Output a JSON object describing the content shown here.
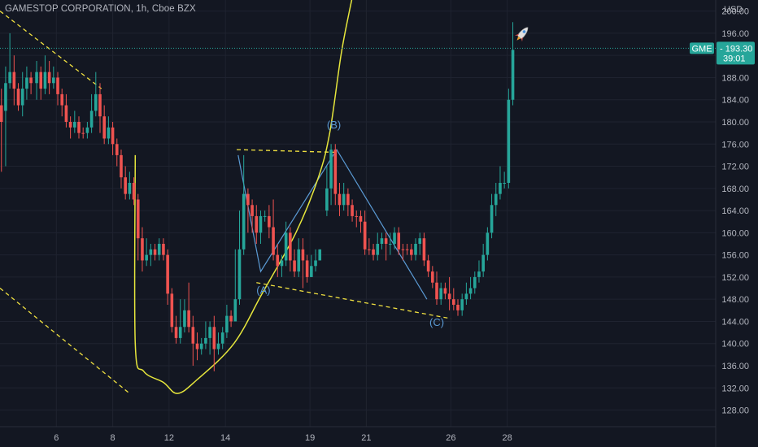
{
  "header": {
    "symbol_title": "GAMESTOP CORPORATION, 1h, Cboe BZX",
    "currency": "USD"
  },
  "colors": {
    "background": "#131722",
    "grid": "#1f2330",
    "up": "#26a69a",
    "down": "#ef5350",
    "trend_dashed": "#f0e040",
    "curve": "#e6e63c",
    "wave_lines": "#5b9bd5",
    "price_line": "#26a69a"
  },
  "price_tag": {
    "ticker": "GME",
    "price": "193.30",
    "countdown": "39:01",
    "value": 193.3
  },
  "rocket_icon": "rocket",
  "chart_data": {
    "type": "candlestick",
    "title": "GAMESTOP CORPORATION, 1h, Cboe BZX",
    "ylim": [
      125,
      202
    ],
    "xlim": [
      4.0,
      29.4
    ],
    "grid": true,
    "y_ticks": [
      "128.00",
      "132.00",
      "136.00",
      "140.00",
      "144.00",
      "148.00",
      "152.00",
      "156.00",
      "160.00",
      "164.00",
      "168.00",
      "172.00",
      "176.00",
      "180.00",
      "184.00",
      "188.00",
      "192.00",
      "196.00",
      "200.00"
    ],
    "x_ticks": [
      {
        "label": "6",
        "v": 6
      },
      {
        "label": "8",
        "v": 8
      },
      {
        "label": "12",
        "v": 10
      },
      {
        "label": "14",
        "v": 12
      },
      {
        "label": "19",
        "v": 15
      },
      {
        "label": "21",
        "v": 17
      },
      {
        "label": "26",
        "v": 20
      },
      {
        "label": "28",
        "v": 22
      }
    ],
    "candles": [
      [
        4.05,
        183,
        180,
        186,
        171,
        "d"
      ],
      [
        4.2,
        182,
        187,
        190,
        172,
        "u"
      ],
      [
        4.35,
        187,
        189,
        196,
        186,
        "u"
      ],
      [
        4.5,
        189,
        186,
        192,
        183,
        "d"
      ],
      [
        4.65,
        186,
        183,
        187,
        182,
        "d"
      ],
      [
        4.8,
        183,
        186,
        189,
        181,
        "u"
      ],
      [
        4.95,
        186,
        188,
        190,
        184,
        "u"
      ],
      [
        5.1,
        188,
        187,
        189,
        185,
        "d"
      ],
      [
        5.3,
        187,
        189,
        191,
        184,
        "u"
      ],
      [
        5.45,
        189,
        186,
        190,
        184,
        "d"
      ],
      [
        5.6,
        186,
        189,
        192,
        185,
        "u"
      ],
      [
        5.75,
        189,
        187,
        191,
        185,
        "d"
      ],
      [
        5.9,
        187,
        188,
        190,
        186,
        "u"
      ],
      [
        6.05,
        188,
        185,
        189,
        183,
        "d"
      ],
      [
        6.2,
        185,
        183,
        186,
        181,
        "d"
      ],
      [
        6.35,
        183,
        180,
        185,
        179,
        "d"
      ],
      [
        6.5,
        180,
        179,
        181,
        177,
        "d"
      ],
      [
        6.65,
        179,
        180,
        182,
        178,
        "u"
      ],
      [
        6.8,
        180,
        178,
        181,
        177,
        "d"
      ],
      [
        6.95,
        178,
        178,
        179,
        177,
        "d"
      ],
      [
        7.1,
        178,
        179,
        180,
        177,
        "u"
      ],
      [
        7.25,
        179,
        182,
        185,
        178,
        "u"
      ],
      [
        7.4,
        182,
        185,
        189,
        181,
        "u"
      ],
      [
        7.55,
        185,
        181,
        187,
        178,
        "d"
      ],
      [
        7.7,
        181,
        177,
        183,
        176,
        "d"
      ],
      [
        7.85,
        177,
        179,
        181,
        176,
        "u"
      ],
      [
        8.0,
        179,
        176,
        180,
        174,
        "d"
      ],
      [
        8.15,
        176,
        174,
        177,
        172,
        "d"
      ],
      [
        8.3,
        174,
        170,
        175,
        168,
        "d"
      ],
      [
        8.45,
        170,
        167,
        172,
        166,
        "d"
      ],
      [
        8.6,
        167,
        169,
        171,
        166,
        "u"
      ],
      [
        8.75,
        169,
        166,
        170,
        165,
        "d"
      ],
      [
        8.9,
        166,
        159,
        167,
        155,
        "d"
      ],
      [
        9.05,
        159,
        155,
        161,
        153,
        "d"
      ],
      [
        9.2,
        155,
        156,
        159,
        154,
        "u"
      ],
      [
        9.35,
        156,
        157,
        158,
        154,
        "u"
      ],
      [
        9.5,
        157,
        156,
        158,
        155,
        "d"
      ],
      [
        9.65,
        156,
        158,
        159,
        155,
        "u"
      ],
      [
        9.8,
        158,
        156,
        159,
        155,
        "d"
      ],
      [
        9.95,
        156,
        149,
        157,
        147,
        "d"
      ],
      [
        10.1,
        149,
        143,
        150,
        142,
        "d"
      ],
      [
        10.25,
        143,
        141,
        145,
        140,
        "d"
      ],
      [
        10.4,
        141,
        143,
        148,
        140,
        "u"
      ],
      [
        10.55,
        143,
        146,
        148,
        142,
        "u"
      ],
      [
        10.7,
        146,
        143,
        151,
        142,
        "d"
      ],
      [
        10.85,
        143,
        140,
        145,
        136,
        "d"
      ],
      [
        11.0,
        140,
        139,
        142,
        137,
        "d"
      ],
      [
        11.15,
        139,
        140,
        141,
        138,
        "u"
      ],
      [
        11.3,
        140,
        141,
        144,
        139,
        "u"
      ],
      [
        11.45,
        141,
        143,
        144,
        138,
        "u"
      ],
      [
        11.6,
        143,
        139,
        145,
        135,
        "d"
      ],
      [
        11.75,
        139,
        140,
        142,
        138,
        "u"
      ],
      [
        11.9,
        140,
        142,
        143,
        139,
        "u"
      ],
      [
        12.05,
        142,
        145,
        147,
        141,
        "u"
      ],
      [
        12.2,
        145,
        144,
        146,
        143,
        "d"
      ],
      [
        12.35,
        144,
        148,
        157,
        144,
        "u"
      ],
      [
        12.5,
        148,
        157,
        164,
        147,
        "u"
      ],
      [
        12.65,
        157,
        167,
        174,
        156,
        "u"
      ],
      [
        12.8,
        167,
        165,
        168,
        160,
        "d"
      ],
      [
        12.95,
        165,
        163,
        166,
        160,
        "d"
      ],
      [
        13.1,
        163,
        160,
        165,
        158,
        "d"
      ],
      [
        13.25,
        160,
        163,
        164,
        158,
        "u"
      ],
      [
        13.4,
        163,
        163,
        164,
        162,
        "u"
      ],
      [
        13.55,
        163,
        161,
        165,
        159,
        "d"
      ],
      [
        13.7,
        161,
        156,
        166,
        155,
        "d"
      ],
      [
        13.85,
        156,
        154,
        158,
        152,
        "d"
      ],
      [
        14.0,
        154,
        155,
        156,
        152,
        "u"
      ],
      [
        14.15,
        155,
        160,
        162,
        154,
        "u"
      ],
      [
        14.3,
        160,
        155,
        161,
        153,
        "d"
      ],
      [
        14.45,
        155,
        153,
        157,
        152,
        "d"
      ],
      [
        14.6,
        153,
        157,
        159,
        152,
        "u"
      ],
      [
        14.75,
        157,
        155,
        159,
        150,
        "d"
      ],
      [
        14.9,
        155,
        152,
        156,
        151,
        "d"
      ],
      [
        15.05,
        152,
        154,
        156,
        152,
        "u"
      ],
      [
        15.2,
        154,
        155,
        157,
        153,
        "u"
      ],
      [
        15.35,
        155,
        157,
        157,
        156,
        "u"
      ],
      [
        15.6,
        164,
        168,
        172,
        163,
        "u"
      ],
      [
        15.75,
        168,
        175,
        176,
        165,
        "u"
      ],
      [
        15.9,
        175,
        167,
        176,
        165,
        "d"
      ],
      [
        16.05,
        167,
        165,
        169,
        163,
        "d"
      ],
      [
        16.2,
        165,
        167,
        169,
        164,
        "u"
      ],
      [
        16.35,
        167,
        165,
        168,
        163,
        "d"
      ],
      [
        16.5,
        165,
        163,
        166,
        162,
        "d"
      ],
      [
        16.65,
        163,
        163,
        164,
        161,
        "d"
      ],
      [
        16.8,
        163,
        162,
        164,
        160,
        "d"
      ],
      [
        16.95,
        162,
        157,
        164,
        156,
        "d"
      ],
      [
        17.1,
        157,
        157,
        159,
        156,
        "d"
      ],
      [
        17.25,
        157,
        156,
        158,
        155,
        "d"
      ],
      [
        17.4,
        156,
        158,
        160,
        155,
        "u"
      ],
      [
        17.55,
        158,
        159,
        160,
        157,
        "u"
      ],
      [
        17.7,
        159,
        158,
        160,
        155,
        "d"
      ],
      [
        17.85,
        158,
        158,
        160,
        156,
        "u"
      ],
      [
        18.0,
        158,
        160,
        161,
        157,
        "u"
      ],
      [
        18.15,
        160,
        157,
        161,
        156,
        "d"
      ],
      [
        18.3,
        157,
        157,
        158,
        155,
        "d"
      ],
      [
        18.45,
        157,
        157,
        158,
        156,
        "d"
      ],
      [
        18.6,
        157,
        156,
        158,
        155,
        "d"
      ],
      [
        18.75,
        156,
        158,
        159,
        155,
        "u"
      ],
      [
        18.9,
        158,
        159,
        160,
        156,
        "u"
      ],
      [
        19.05,
        159,
        155,
        160,
        154,
        "d"
      ],
      [
        19.2,
        155,
        153,
        156,
        152,
        "d"
      ],
      [
        19.35,
        153,
        151,
        154,
        150,
        "d"
      ],
      [
        19.5,
        151,
        148,
        153,
        147,
        "d"
      ],
      [
        19.65,
        148,
        150,
        151,
        147,
        "u"
      ],
      [
        19.8,
        150,
        149,
        151,
        148,
        "d"
      ],
      [
        19.95,
        149,
        148,
        152,
        146,
        "d"
      ],
      [
        20.1,
        148,
        147,
        150,
        146,
        "d"
      ],
      [
        20.25,
        147,
        146,
        148,
        145,
        "d"
      ],
      [
        20.4,
        146,
        148,
        149,
        145,
        "u"
      ],
      [
        20.55,
        148,
        149,
        151,
        147,
        "u"
      ],
      [
        20.7,
        149,
        150,
        152,
        148,
        "u"
      ],
      [
        20.85,
        150,
        152,
        153,
        149,
        "u"
      ],
      [
        21.0,
        152,
        153,
        155,
        151,
        "u"
      ],
      [
        21.15,
        153,
        156,
        158,
        152,
        "u"
      ],
      [
        21.3,
        156,
        160,
        161,
        155,
        "u"
      ],
      [
        21.45,
        160,
        165,
        167,
        159,
        "u"
      ],
      [
        21.6,
        165,
        167,
        169,
        163,
        "u"
      ],
      [
        21.75,
        167,
        169,
        172,
        166,
        "u"
      ],
      [
        21.9,
        169,
        169,
        171,
        168,
        "u"
      ],
      [
        22.05,
        169,
        184,
        186,
        168,
        "u"
      ],
      [
        22.2,
        184,
        193,
        198,
        183,
        "u"
      ]
    ],
    "annotations": [
      {
        "text": "(A)",
        "x": 13.35,
        "y": 149.0
      },
      {
        "text": "(B)",
        "x": 15.85,
        "y": 178.8
      },
      {
        "text": "(C)",
        "x": 19.5,
        "y": 143.2
      }
    ],
    "drawings": {
      "dashed_lines": [
        [
          [
            4.0,
            200
          ],
          [
            7.6,
            186
          ]
        ],
        [
          [
            4.0,
            150
          ],
          [
            8.6,
            131
          ]
        ],
        [
          [
            12.4,
            175
          ],
          [
            16.0,
            174.5
          ]
        ],
        [
          [
            13.1,
            151
          ],
          [
            20.0,
            144.5
          ]
        ]
      ],
      "wave_path": [
        [
          12.45,
          174
        ],
        [
          13.25,
          153
        ],
        [
          15.95,
          175
        ],
        [
          19.15,
          148
        ]
      ],
      "curve_points": [
        [
          8.8,
          174
        ],
        [
          8.8,
          140
        ],
        [
          9.1,
          135
        ],
        [
          9.8,
          133
        ],
        [
          10.3,
          131
        ],
        [
          11.0,
          133.5
        ],
        [
          12.3,
          140
        ],
        [
          13.3,
          149
        ],
        [
          14.5,
          160
        ],
        [
          15.3,
          170
        ],
        [
          15.7,
          178
        ],
        [
          16.1,
          192
        ],
        [
          16.4,
          200
        ],
        [
          16.9,
          212
        ]
      ]
    }
  }
}
